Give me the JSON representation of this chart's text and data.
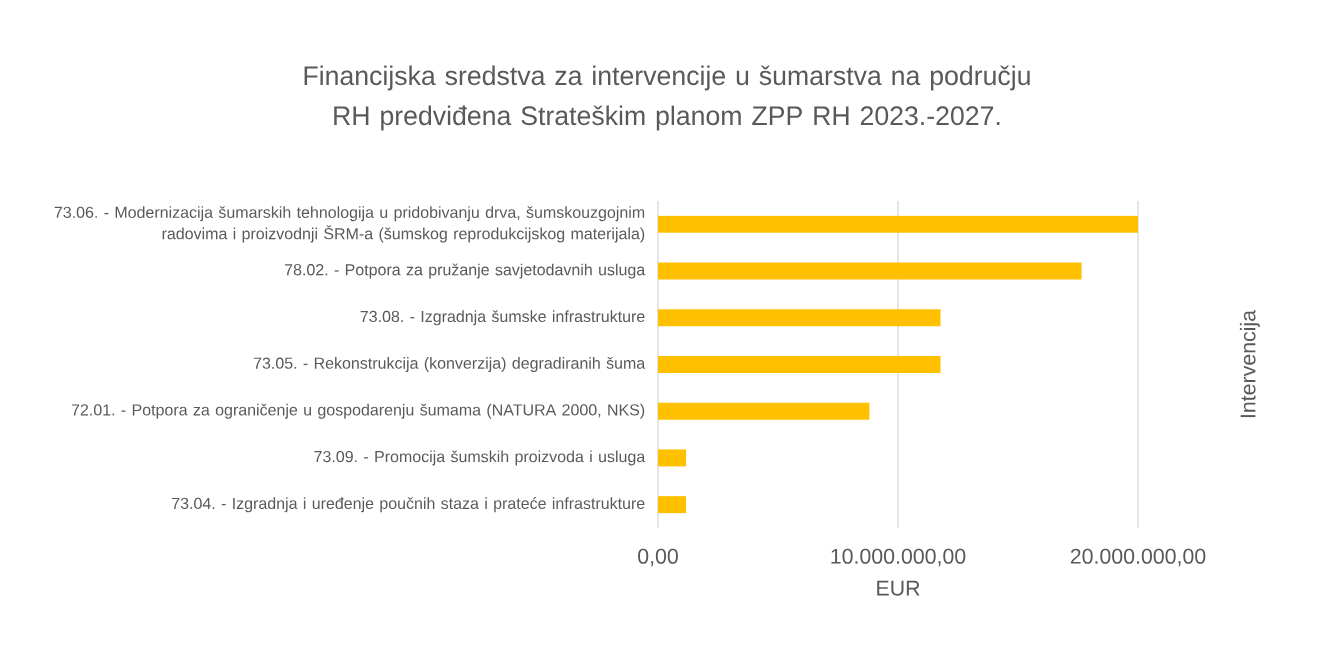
{
  "chart_data": {
    "type": "bar",
    "orientation": "horizontal",
    "title": "Financijska sredstva za intervencije u šumarstva na području RH predviđena Strateškim planom ZPP RH 2023.-2027.",
    "xlabel": "EUR",
    "ylabel": "Intervencija",
    "categories": [
      "73.06. - Modernizacija šumarskih tehnologija u pridobivanju drva, šumskouzgojnim radovima i proizvodnji ŠRM-a (šumskog reprodukcijskog materijala)",
      "78.02. - Potpora za pružanje savjetodavnih usluga",
      "73.08. - Izgradnja šumske infrastrukture",
      "73.05. - Rekonstrukcija (konverzija) degradiranih šuma",
      "72.01. - Potpora za ograničenje u gospodarenju šumama (NATURA 2000, NKS)",
      "73.09. - Promocija šumskih proizvoda i usluga",
      "73.04. - Izgradnja i uređenje poučnih staza i prateće infrastrukture"
    ],
    "values": [
      20000000,
      17650000,
      11770000,
      11770000,
      8810000,
      1170000,
      1170000
    ],
    "color": "#ffc000",
    "xlim": [
      0,
      20000000
    ],
    "xticks": [
      {
        "value": 0,
        "label": "0,00"
      },
      {
        "value": 10000000,
        "label": "10.000.000,00"
      },
      {
        "value": 20000000,
        "label": "20.000.000,00"
      }
    ],
    "grid": "x"
  }
}
